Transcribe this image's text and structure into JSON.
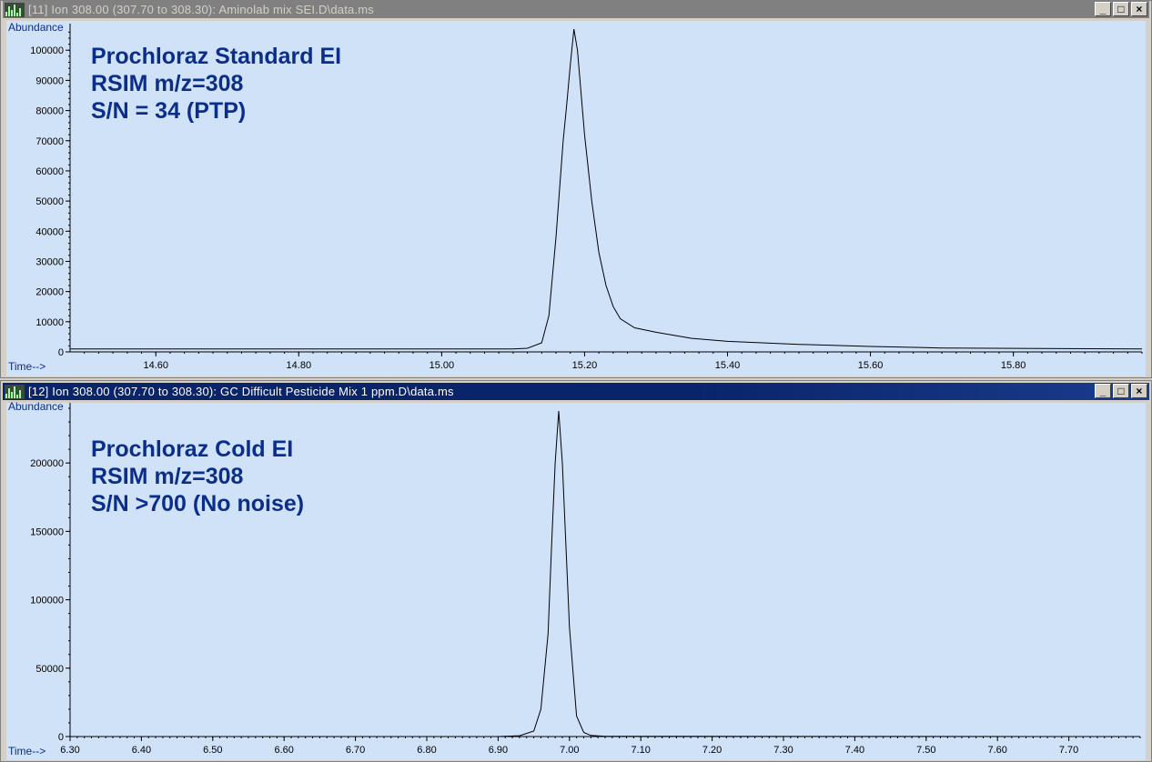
{
  "windows": [
    {
      "title": "[11] Ion 308.00 (307.70 to 308.30): Aminolab mix SEI.D\\data.ms",
      "active": false,
      "buttons": {
        "minimize": "_",
        "maximize": "□",
        "close": "×"
      },
      "annotation": [
        "Prochloraz Standard EI",
        "RSIM m/z=308",
        "S/N = 34 (PTP)"
      ]
    },
    {
      "title": "[12] Ion 308.00 (307.70 to 308.30): GC Difficult Pesticide Mix 1 ppm.D\\data.ms",
      "active": true,
      "buttons": {
        "minimize": "_",
        "maximize": "□",
        "close": "×"
      },
      "annotation": [
        "Prochloraz Cold EI",
        "RSIM m/z=308",
        "S/N >700 (No noise)"
      ]
    }
  ],
  "chart_data": [
    {
      "type": "line",
      "title": "",
      "ylabel": "Abundance",
      "xlabel": "Time-->",
      "xlim": [
        14.48,
        15.98
      ],
      "ylim": [
        0,
        107000
      ],
      "yticks": [
        0,
        10000,
        20000,
        30000,
        40000,
        50000,
        60000,
        70000,
        80000,
        90000,
        100000
      ],
      "xticks": [
        "14.60",
        "14.80",
        "15.00",
        "15.20",
        "15.40",
        "15.60",
        "15.80"
      ],
      "series": [
        {
          "x": [
            14.48,
            15.1,
            15.12,
            15.14,
            15.15,
            15.16,
            15.17,
            15.175,
            15.18,
            15.185,
            15.19,
            15.2,
            15.21,
            15.22,
            15.23,
            15.24,
            15.25,
            15.27,
            15.3,
            15.35,
            15.4,
            15.5,
            15.6,
            15.7,
            15.98
          ],
          "y": [
            1000,
            1000,
            1200,
            3000,
            12000,
            38000,
            70000,
            82000,
            95000,
            107000,
            100000,
            72000,
            50000,
            33000,
            22000,
            15000,
            11000,
            8000,
            6500,
            4500,
            3500,
            2500,
            1800,
            1300,
            1000
          ]
        }
      ]
    },
    {
      "type": "line",
      "title": "",
      "ylabel": "Abundance",
      "xlabel": "Time-->",
      "xlim": [
        6.3,
        7.8
      ],
      "ylim": [
        0,
        240000
      ],
      "yticks": [
        0,
        50000,
        100000,
        150000,
        200000
      ],
      "xticks": [
        "6.30",
        "6.40",
        "6.50",
        "6.60",
        "6.70",
        "6.80",
        "6.90",
        "7.00",
        "7.10",
        "7.20",
        "7.30",
        "7.40",
        "7.50",
        "7.60",
        "7.70"
      ],
      "series": [
        {
          "x": [
            6.3,
            6.9,
            6.93,
            6.95,
            6.96,
            6.97,
            6.975,
            6.98,
            6.985,
            6.99,
            6.995,
            7.0,
            7.01,
            7.02,
            7.03,
            7.05,
            7.8
          ],
          "y": [
            0,
            0,
            600,
            4000,
            20000,
            75000,
            140000,
            200000,
            238000,
            200000,
            140000,
            80000,
            15000,
            3000,
            800,
            200,
            0
          ]
        }
      ]
    }
  ]
}
